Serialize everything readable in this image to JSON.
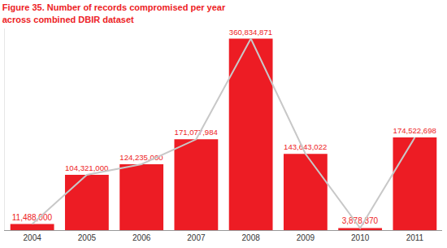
{
  "chart_data": {
    "type": "bar",
    "title": "Figure 35. Number of records compromised per year\nacross combined DBIR dataset",
    "categories": [
      "2004",
      "2005",
      "2006",
      "2007",
      "2008",
      "2009",
      "2010",
      "2011"
    ],
    "series": [
      {
        "type": "bar",
        "color": "#ed1c24",
        "data_labels": true,
        "values": [
          11488000,
          104321000,
          124235000,
          171077984,
          360834871,
          143643022,
          3878370,
          174522698
        ],
        "value_labels": [
          "11,488,000",
          "104,321,000",
          "124,235,000",
          "171,077,984",
          "360,834,871",
          "143,643,022",
          "3,878,370",
          "174,522,698"
        ]
      },
      {
        "type": "line",
        "color": "#c8c8c8",
        "values": [
          11488000,
          104321000,
          124235000,
          171077984,
          360834871,
          143643022,
          3878370,
          174522698
        ]
      }
    ],
    "ylim": [
      0,
      380000000
    ],
    "tick_labels": "x",
    "grid": false
  }
}
